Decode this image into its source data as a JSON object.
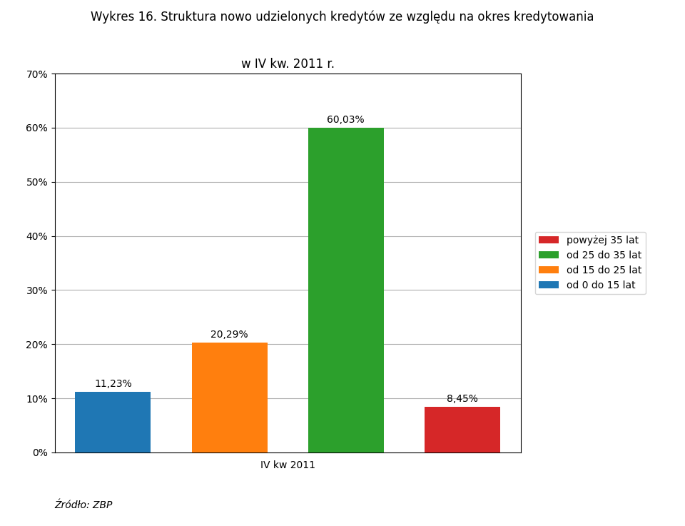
{
  "chart_data": {
    "type": "bar",
    "title": "Wykres 16. Struktura nowo udzielonych kredytów ze względu na okres kredytowania",
    "subtitle": "w IV kw. 2011 r.",
    "x_label": "IV kw 2011",
    "categories": [
      "od 0 do 15 lat",
      "od 15 do 25 lat",
      "od 25 do 35 lat",
      "powyżej 35 lat"
    ],
    "values": [
      11.23,
      20.29,
      60.03,
      8.45
    ],
    "value_labels": [
      "11,23%",
      "20,29%",
      "60,03%",
      "8,45%"
    ],
    "data_labels": true,
    "colors": [
      "#1f77b4",
      "#ff7f0e",
      "#2ca02c",
      "#d62728"
    ],
    "ylim": [
      0,
      70
    ],
    "yticks": [
      {
        "value": 0,
        "label": "0%"
      },
      {
        "value": 10,
        "label": "10%"
      },
      {
        "value": 20,
        "label": "20%"
      },
      {
        "value": 30,
        "label": "30%"
      },
      {
        "value": 40,
        "label": "40%"
      },
      {
        "value": 50,
        "label": "50%"
      },
      {
        "value": 60,
        "label": "60%"
      },
      {
        "value": 70,
        "label": "70%"
      }
    ],
    "grid": true,
    "legend": "center left",
    "tick_labels": "y",
    "annotations": [
      "Źródło: ZBP"
    ]
  }
}
